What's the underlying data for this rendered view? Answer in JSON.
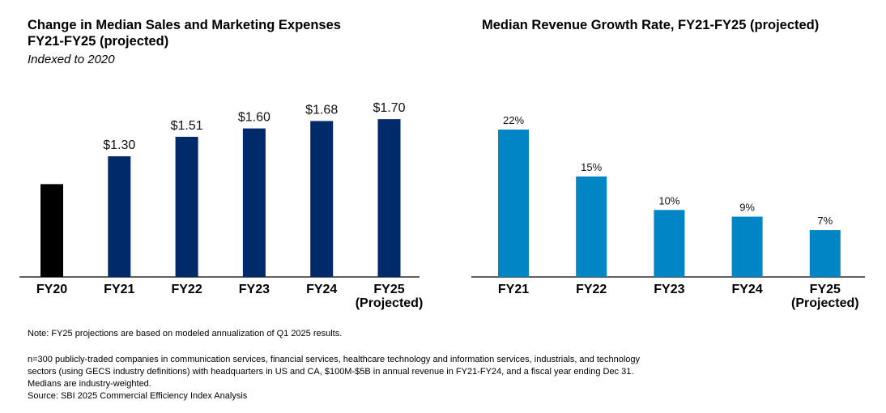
{
  "left": {
    "title_line1": "Change in Median Sales and Marketing Expenses",
    "title_line2": "FY21-FY25 (projected)",
    "subtitle": "Indexed to 2020"
  },
  "right": {
    "title": "Median Revenue Growth Rate, FY21-FY25 (projected)"
  },
  "colors": {
    "baseline_bar": "#000000",
    "navy_bar": "#012a6b",
    "blue_bar": "#0285c5",
    "axis": "#000000"
  },
  "chart_data": [
    {
      "type": "bar",
      "title": "Change in Median Sales and Marketing Expenses FY21-FY25 (projected)",
      "subtitle": "Indexed to 2020",
      "categories": [
        "FY20",
        "FY21",
        "FY22",
        "FY23",
        "FY24",
        "FY25\n(Projected)"
      ],
      "category_lines": [
        [
          "FY20"
        ],
        [
          "FY21"
        ],
        [
          "FY22"
        ],
        [
          "FY23"
        ],
        [
          "FY24"
        ],
        [
          "FY25",
          "(Projected)"
        ]
      ],
      "values": [
        1.0,
        1.3,
        1.51,
        1.6,
        1.68,
        1.7
      ],
      "labels": [
        "",
        "$1.30",
        "$1.51",
        "$1.60",
        "$1.68",
        "$1.70"
      ],
      "ylim": [
        0,
        1.9
      ],
      "xlabel": "",
      "ylabel": "",
      "grid": false
    },
    {
      "type": "bar",
      "title": "Median Revenue Growth Rate, FY21-FY25 (projected)",
      "categories": [
        "FY21",
        "FY22",
        "FY23",
        "FY24",
        "FY25\n(Projected)"
      ],
      "category_lines": [
        [
          "FY21"
        ],
        [
          "FY22"
        ],
        [
          "FY23"
        ],
        [
          "FY24"
        ],
        [
          "FY25",
          "(Projected)"
        ]
      ],
      "values": [
        22,
        15,
        10,
        9,
        7
      ],
      "labels": [
        "22%",
        "15%",
        "10%",
        "9%",
        "7%"
      ],
      "ylim": [
        0,
        26
      ],
      "xlabel": "",
      "ylabel": "",
      "grid": false
    }
  ],
  "notes": {
    "note": "Note: FY25 projections are based on modeled annualization of Q1 2025 results.",
    "lines": [
      "n=300 publicly-traded companies in communication services, financial services, healthcare technology and information services, industrials, and technology",
      "sectors (using GECS industry definitions) with headquarters in US and CA, $100M-$5B in annual revenue in FY21-FY24, and a fiscal year ending Dec 31.",
      "Medians are industry-weighted.",
      "Source: SBI 2025 Commercial Efficiency Index Analysis"
    ]
  }
}
